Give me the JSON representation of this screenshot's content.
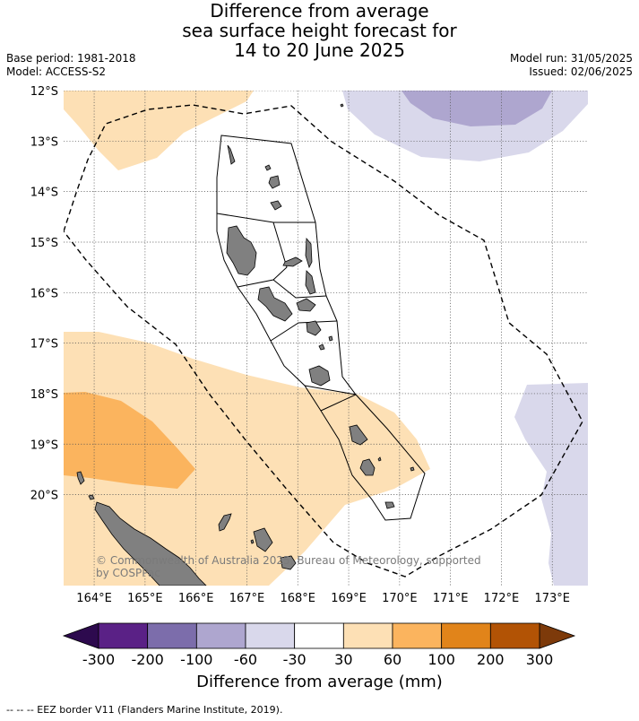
{
  "header": {
    "title_line1": "Difference from average",
    "title_line2": "sea surface height forecast for",
    "title_line3": "14 to 20 June 2025",
    "base_period": "Base period: 1981-2018",
    "model": "Model: ACCESS-S2",
    "model_run": "Model run: 31/05/2025",
    "issued": "Issued: 02/06/2025"
  },
  "map": {
    "lon_range": [
      163.4,
      173.7
    ],
    "lat_range": [
      -21.8,
      -12
    ],
    "lat_labels": [
      "12°S",
      "13°S",
      "14°S",
      "15°S",
      "16°S",
      "17°S",
      "18°S",
      "19°S",
      "20°S"
    ],
    "lat_values": [
      -12,
      -13,
      -14,
      -15,
      -16,
      -17,
      -18,
      -19,
      -20
    ],
    "lon_labels": [
      "164°E",
      "165°E",
      "166°E",
      "167°E",
      "168°E",
      "169°E",
      "170°E",
      "171°E",
      "172°E",
      "173°E"
    ],
    "lon_values": [
      164,
      165,
      166,
      167,
      168,
      169,
      170,
      171,
      172,
      173
    ],
    "land_color": "#808080",
    "copyright": "© Commonwealth of Australia 2025, Bureau of Meteorology, supported by COSPPac"
  },
  "colorbar": {
    "ticks": [
      "-300",
      "-200",
      "-100",
      "-60",
      "-30",
      "30",
      "60",
      "100",
      "200",
      "300"
    ],
    "colors": [
      "#5a2186",
      "#7c6dab",
      "#aea6cf",
      "#d9d8eb",
      "#ffffff",
      "#fde0b5",
      "#fbb45e",
      "#e1841a",
      "#b25305"
    ],
    "under_color": "#2d0a4e",
    "over_color": "#7d3a0a",
    "label": "Difference from average (mm)"
  },
  "footnote": "--  --  -- EEZ border V11 (Flanders Marine Institute, 2019)."
}
